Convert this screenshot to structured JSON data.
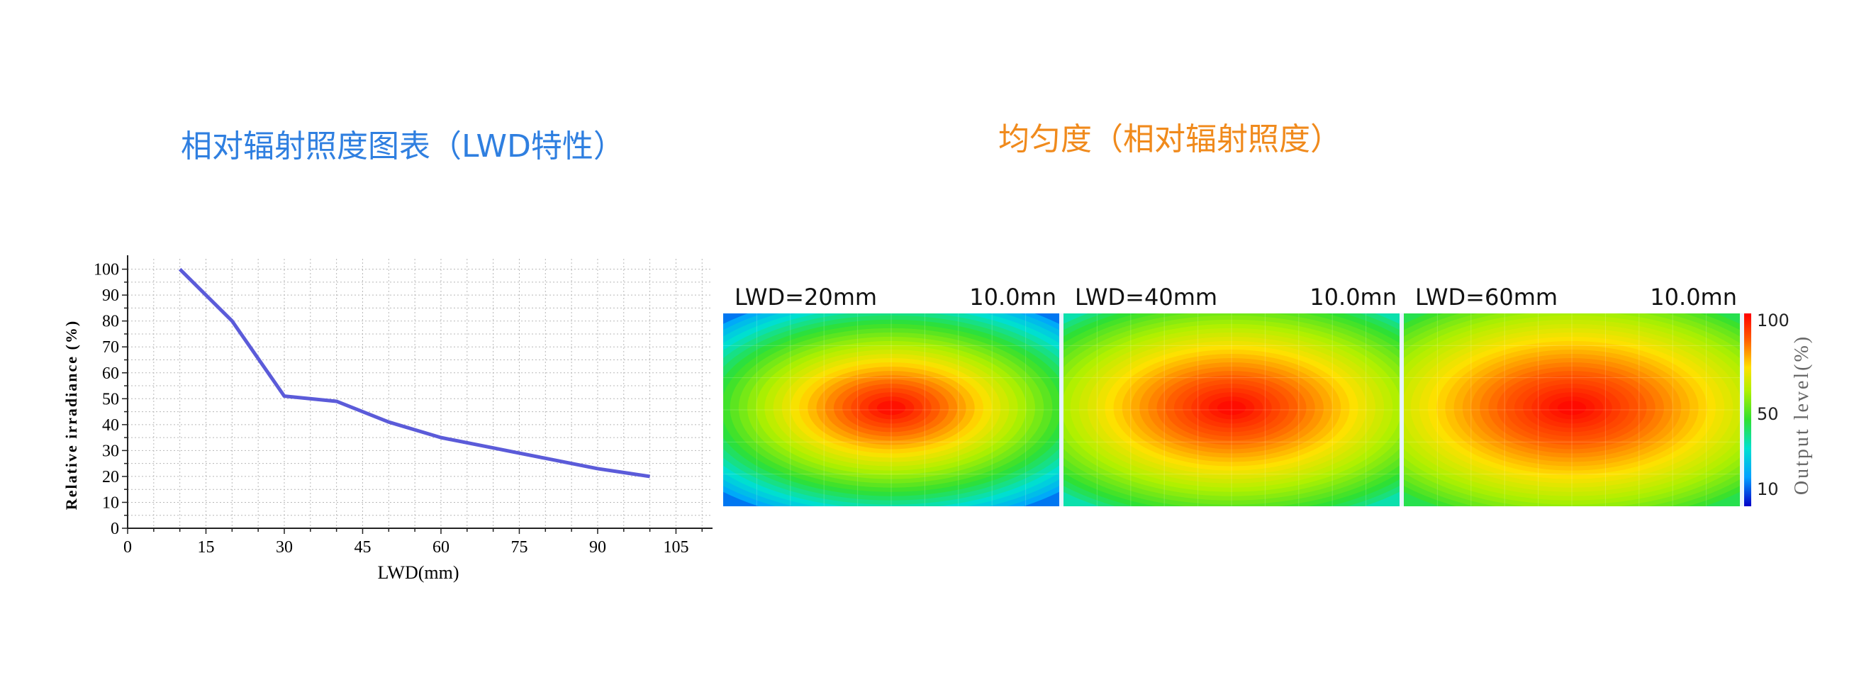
{
  "titles": {
    "left": "相对辐射照度图表（LWD特性）",
    "right": "均匀度（相对辐射照度）"
  },
  "colors": {
    "left_title": "#2f7fe0",
    "right_title": "#f08a1c",
    "line": "#5b5bd9",
    "grid": "#b8b8b8"
  },
  "chart_data": [
    {
      "type": "line",
      "xlabel": "LWD(mm)",
      "ylabel": "Relative irradiance (%)",
      "xlim": [
        0,
        112
      ],
      "ylim": [
        0,
        104
      ],
      "x_ticks": [
        0,
        15,
        30,
        45,
        60,
        75,
        90,
        105
      ],
      "y_ticks": [
        0,
        10,
        20,
        30,
        40,
        50,
        60,
        70,
        80,
        90,
        100
      ],
      "grid": true,
      "series": [
        {
          "x": [
            10,
            20,
            30,
            40,
            50,
            60,
            70,
            80,
            90,
            100
          ],
          "y": [
            100,
            80,
            51,
            49,
            41,
            35,
            31,
            27,
            23,
            20
          ]
        }
      ]
    },
    {
      "type": "heatmap",
      "colorbar_label": "Output level(%)",
      "colorbar_ticks": [
        "100",
        "50",
        "10"
      ],
      "colorbar_range": [
        10,
        100
      ],
      "panels": [
        {
          "label": "LWD=20mm",
          "scale": "10.0mn",
          "peak": 100,
          "edge": 20
        },
        {
          "label": "LWD=40mm",
          "scale": "10.0mn",
          "peak": 100,
          "edge": 40
        },
        {
          "label": "LWD=60mm",
          "scale": "10.0mn",
          "peak": 100,
          "edge": 48
        }
      ]
    }
  ]
}
